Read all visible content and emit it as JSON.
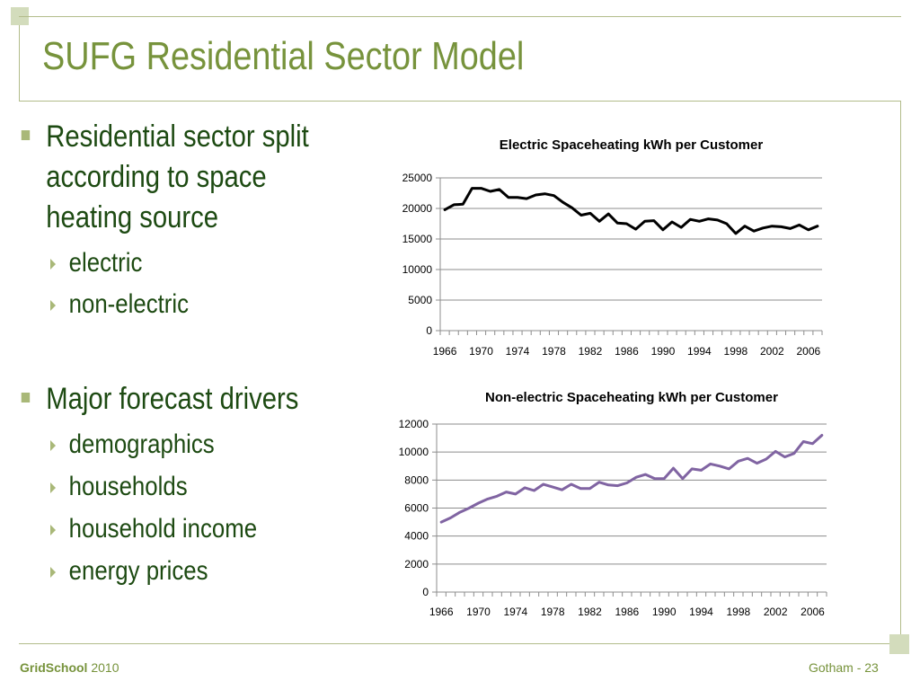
{
  "slide": {
    "title": "SUFG Residential Sector Model",
    "bullets": [
      {
        "text": "Residential sector split according to space heating source",
        "lines": [
          "Residential sector split",
          "according to space",
          "heating source"
        ],
        "subs": [
          "electric",
          "non-electric"
        ]
      },
      {
        "text": "Major forecast drivers",
        "lines": [
          "Major forecast drivers"
        ],
        "subs": [
          "demographics",
          "households",
          "household income",
          "energy prices"
        ]
      }
    ]
  },
  "footer": {
    "brand": "GridSchool",
    "year": "2010",
    "page": "Gotham - 23"
  },
  "colors": {
    "accent": "#77933c",
    "text": "#1d4a12",
    "decor": "#d3dcbc",
    "series_electric": "#000000",
    "series_nonelectric": "#8064a2"
  },
  "chart_data": [
    {
      "type": "line",
      "title": "Electric Spaceheating kWh per Customer",
      "xlabel": "",
      "ylabel": "",
      "ylim": [
        0,
        25000
      ],
      "yticks": [
        0,
        5000,
        10000,
        15000,
        20000,
        25000
      ],
      "xtick_labels": [
        "1966",
        "1970",
        "1974",
        "1978",
        "1982",
        "1986",
        "1990",
        "1994",
        "1998",
        "2002",
        "2006"
      ],
      "grid": true,
      "x": [
        1966,
        1967,
        1968,
        1969,
        1970,
        1971,
        1972,
        1973,
        1974,
        1975,
        1976,
        1977,
        1978,
        1979,
        1980,
        1981,
        1982,
        1983,
        1984,
        1985,
        1986,
        1987,
        1988,
        1989,
        1990,
        1991,
        1992,
        1993,
        1994,
        1995,
        1996,
        1997,
        1998,
        1999,
        2000,
        2001,
        2002,
        2003,
        2004,
        2005,
        2006,
        2007
      ],
      "series": [
        {
          "values": [
            19800,
            20600,
            20700,
            23300,
            23300,
            22800,
            23100,
            21800,
            21800,
            21600,
            22200,
            22400,
            22100,
            21000,
            20100,
            18900,
            19200,
            17900,
            19100,
            17600,
            17500,
            16600,
            17900,
            18000,
            16500,
            17800,
            16900,
            18200,
            17900,
            18300,
            18100,
            17500,
            15900,
            17100,
            16300,
            16800,
            17100,
            17000,
            16700,
            17300,
            16500,
            17100
          ]
        }
      ]
    },
    {
      "type": "line",
      "title": "Non-electric Spaceheating kWh per Customer",
      "xlabel": "",
      "ylabel": "",
      "ylim": [
        0,
        12000
      ],
      "yticks": [
        0,
        2000,
        4000,
        6000,
        8000,
        10000,
        12000
      ],
      "xtick_labels": [
        "1966",
        "1970",
        "1974",
        "1978",
        "1982",
        "1986",
        "1990",
        "1994",
        "1998",
        "2002",
        "2006"
      ],
      "grid": true,
      "x": [
        1966,
        1967,
        1968,
        1969,
        1970,
        1971,
        1972,
        1973,
        1974,
        1975,
        1976,
        1977,
        1978,
        1979,
        1980,
        1981,
        1982,
        1983,
        1984,
        1985,
        1986,
        1987,
        1988,
        1989,
        1990,
        1991,
        1992,
        1993,
        1994,
        1995,
        1996,
        1997,
        1998,
        1999,
        2000,
        2001,
        2002,
        2003,
        2004,
        2005,
        2006,
        2007
      ],
      "series": [
        {
          "values": [
            5000,
            5300,
            5700,
            6000,
            6350,
            6650,
            6850,
            7150,
            7000,
            7450,
            7250,
            7700,
            7500,
            7300,
            7700,
            7400,
            7400,
            7850,
            7650,
            7600,
            7800,
            8200,
            8400,
            8100,
            8100,
            8850,
            8100,
            8800,
            8700,
            9150,
            9000,
            8800,
            9350,
            9550,
            9200,
            9500,
            10050,
            9650,
            9900,
            10750,
            10600,
            11200
          ]
        }
      ]
    }
  ]
}
